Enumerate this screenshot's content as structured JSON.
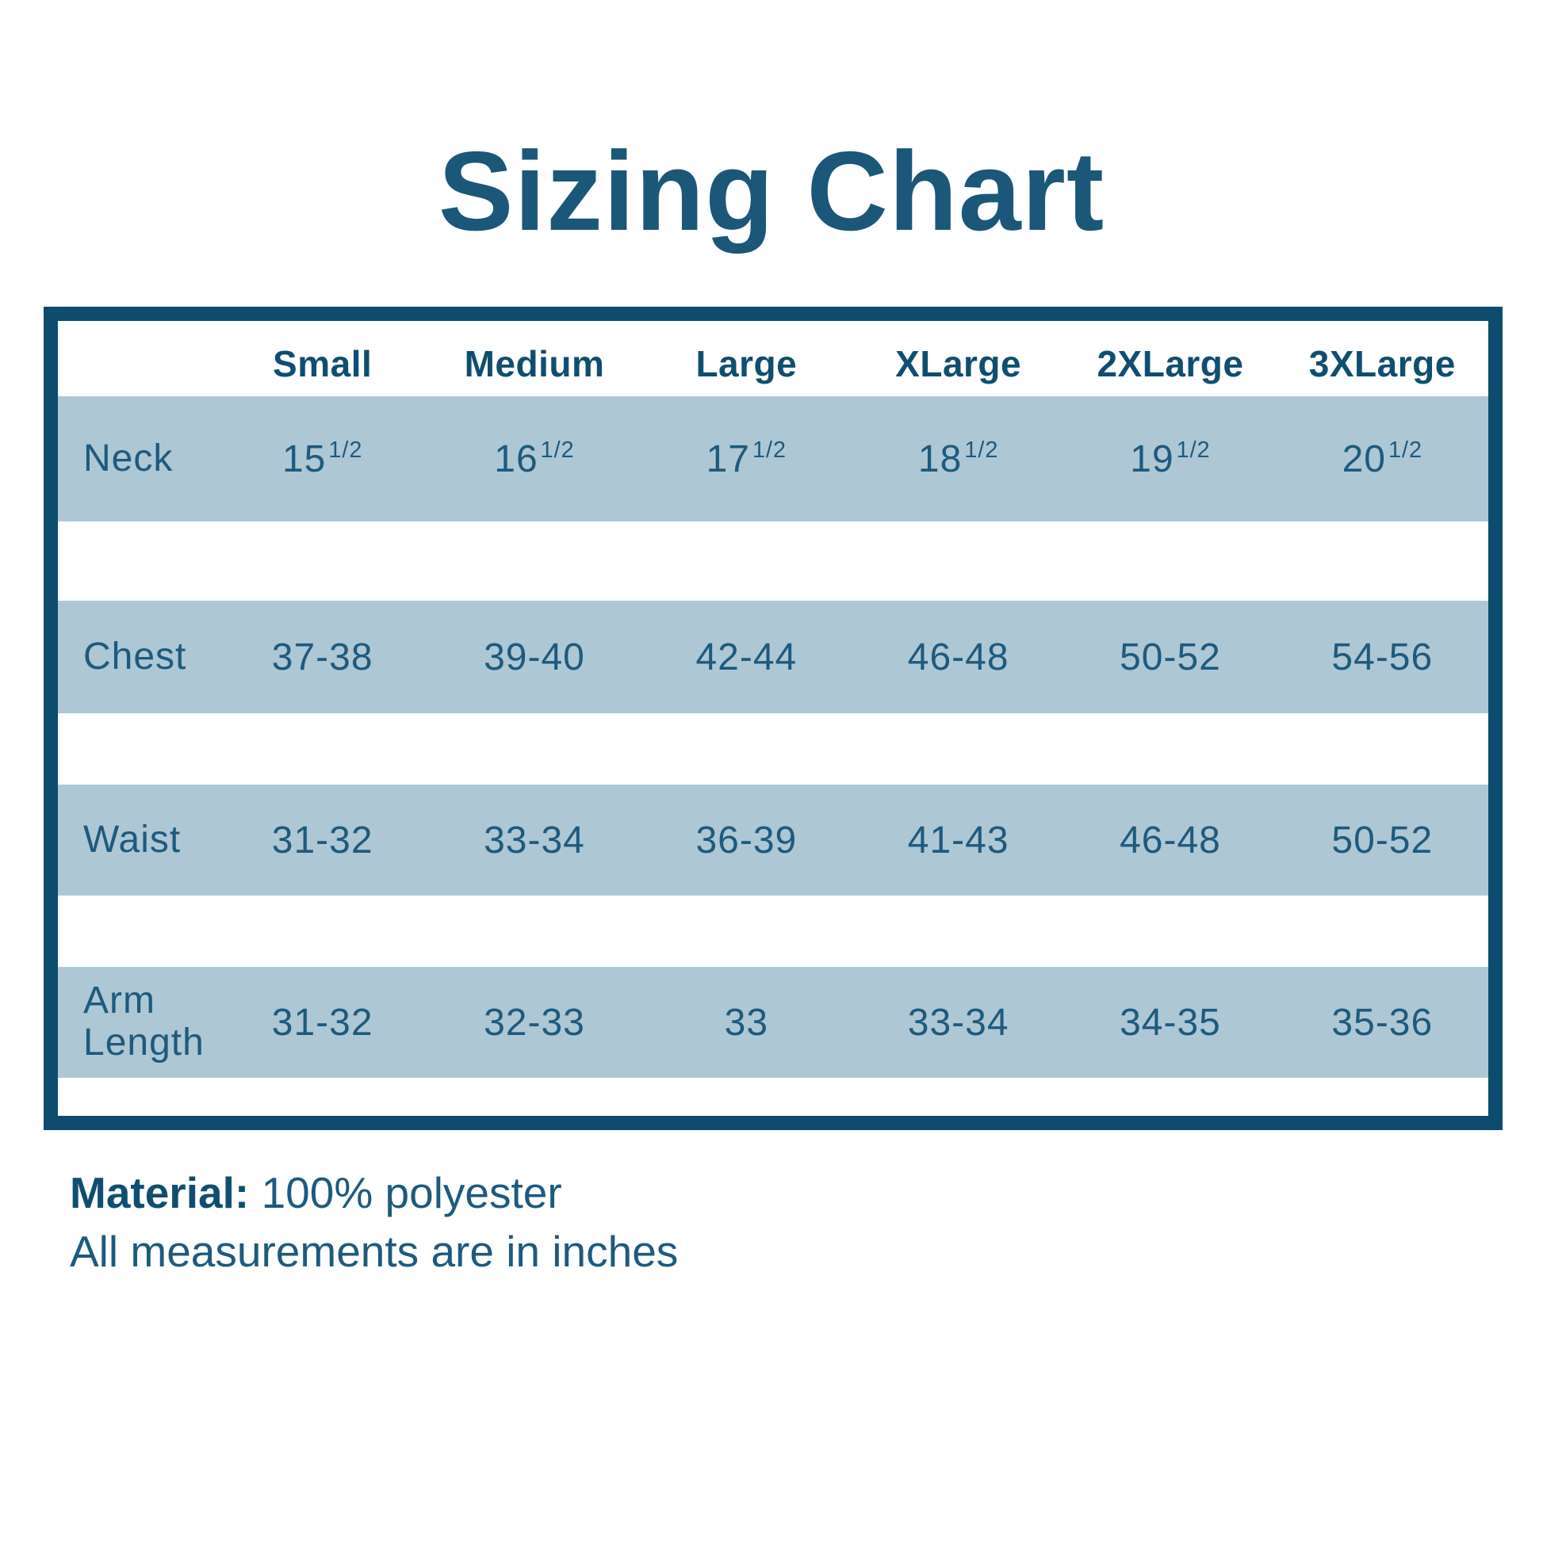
{
  "title": "Sizing Chart",
  "chart_data": {
    "type": "table",
    "title": "Sizing Chart",
    "columns": [
      "",
      "Small",
      "Medium",
      "Large",
      "XLarge",
      "2XLarge",
      "3XLarge"
    ],
    "rows": [
      [
        "Neck",
        "15 1/2",
        "16 1/2",
        "17 1/2",
        "18 1/2",
        "19 1/2",
        "20 1/2"
      ],
      [
        "Chest",
        "37-38",
        "39-40",
        "42-44",
        "46-48",
        "50-52",
        "54-56"
      ],
      [
        "Waist",
        "31-32",
        "33-34",
        "36-39",
        "41-43",
        "46-48",
        "50-52"
      ],
      [
        "Arm Length",
        "31-32",
        "32-33",
        "33",
        "33-34",
        "34-35",
        "35-36"
      ]
    ],
    "notes": [
      "Material: 100% polyester",
      "All measurements are in inches"
    ],
    "units": "inches",
    "layout": "row bands shaded light blue, dark blue outer frame, no vertical gridlines"
  },
  "table": {
    "headers": [
      "Small",
      "Medium",
      "Large",
      "XLarge",
      "2XLarge",
      "3XLarge"
    ],
    "rows": [
      {
        "label": "Neck",
        "values": [
          {
            "whole": "15",
            "frac": "1/2"
          },
          {
            "whole": "16",
            "frac": "1/2"
          },
          {
            "whole": "17",
            "frac": "1/2"
          },
          {
            "whole": "18",
            "frac": "1/2"
          },
          {
            "whole": "19",
            "frac": "1/2"
          },
          {
            "whole": "20",
            "frac": "1/2"
          }
        ]
      },
      {
        "label": "Chest",
        "values": [
          "37-38",
          "39-40",
          "42-44",
          "46-48",
          "50-52",
          "54-56"
        ]
      },
      {
        "label": "Waist",
        "values": [
          "31-32",
          "33-34",
          "36-39",
          "41-43",
          "46-48",
          "50-52"
        ]
      },
      {
        "label": "Arm Length",
        "values": [
          "31-32",
          "32-33",
          "33",
          "33-34",
          "34-35",
          "35-36"
        ]
      }
    ]
  },
  "footer": {
    "material_label": "Material:",
    "material_value": "100% polyester",
    "note": "All measurements are in inches"
  },
  "colors": {
    "frame": "#0d4c6e",
    "row_band": "#aec7d5",
    "text": "#1d5a7e",
    "heading": "#0f4e70",
    "title": "#1b5778"
  }
}
